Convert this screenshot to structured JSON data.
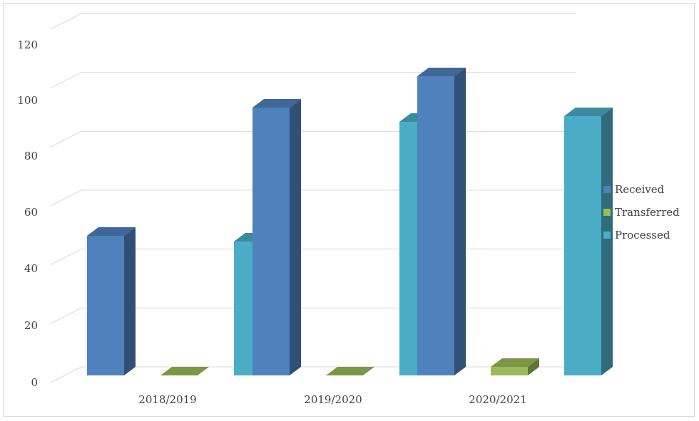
{
  "chart_data": {
    "type": "bar",
    "style": "3d-clustered-column",
    "categories": [
      "2018/2019",
      "2019/2020",
      "2020/2021"
    ],
    "series": [
      {
        "name": "Received",
        "values": [
          49,
          94,
          105
        ],
        "color": "#4f81bd"
      },
      {
        "name": "Transferred",
        "values": [
          0,
          0,
          3
        ],
        "color": "#9bbb59"
      },
      {
        "name": "Processed",
        "values": [
          47,
          89,
          91
        ],
        "color": "#4bacc6"
      }
    ],
    "yticks": [
      "0",
      "20",
      "40",
      "60",
      "80",
      "100",
      "120"
    ],
    "ylim": [
      0,
      120
    ],
    "grid": true,
    "legend": "right"
  }
}
